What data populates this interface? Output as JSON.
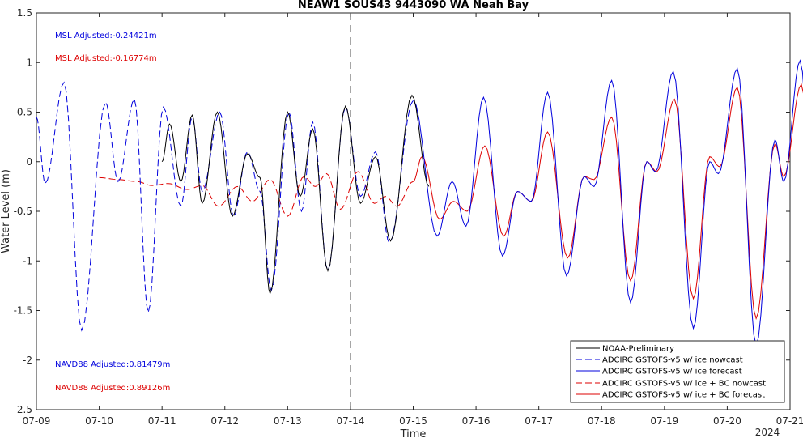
{
  "chart_data": {
    "type": "line",
    "title": "NEAW1 SOUS43 9443090 WA Neah Bay",
    "xlabel": "Time",
    "ylabel": "Water Level (m)",
    "year_label": "2024",
    "xlim": [
      "07-09",
      "07-21"
    ],
    "ylim": [
      -2.5,
      1.5
    ],
    "x_ticks": [
      "07-09",
      "07-10",
      "07-11",
      "07-12",
      "07-13",
      "07-14",
      "07-15",
      "07-16",
      "07-17",
      "07-18",
      "07-19",
      "07-20",
      "07-21"
    ],
    "y_ticks": [
      "-2.5",
      "-2",
      "-1.5",
      "-1",
      "-0.5",
      "0",
      "0.5",
      "1",
      "1.5"
    ],
    "nowcast_forecast_divider_x": "07-14",
    "annotations": [
      {
        "text": "MSL Adjusted:-0.24421m",
        "color": "#0000dd"
      },
      {
        "text": "MSL Adjusted:-0.16774m",
        "color": "#dd0000"
      },
      {
        "text": "NAVD88 Adjusted:0.81479m",
        "color": "#0000dd"
      },
      {
        "text": "NAVD88 Adjusted:0.89126m",
        "color": "#dd0000"
      }
    ],
    "legend_position": "bottom-right",
    "series": [
      {
        "name": "NOAA-Preliminary",
        "color": "#000000",
        "dash": "solid",
        "x_range": [
          "07-11",
          "07-14 06:00"
        ],
        "extrema": [
          [
            2.0,
            0.0
          ],
          [
            2.12,
            0.38
          ],
          [
            2.3,
            -0.2
          ],
          [
            2.48,
            0.47
          ],
          [
            2.64,
            -0.42
          ],
          [
            2.88,
            0.5
          ],
          [
            3.12,
            -0.55
          ],
          [
            3.36,
            0.08
          ],
          [
            3.56,
            -0.16
          ],
          [
            3.72,
            -1.33
          ],
          [
            4.0,
            0.5
          ],
          [
            4.2,
            -0.35
          ],
          [
            4.4,
            0.33
          ],
          [
            4.64,
            -1.1
          ],
          [
            4.92,
            0.56
          ],
          [
            5.16,
            -0.42
          ],
          [
            5.4,
            0.05
          ],
          [
            5.64,
            -0.8
          ],
          [
            5.98,
            0.67
          ],
          [
            6.25,
            -0.25
          ]
        ]
      },
      {
        "name": "ADCIRC GSTOFS-v5 w/ ice nowcast",
        "color": "#0000dd",
        "dash": "dashed",
        "x_range": [
          "07-09",
          "07-14"
        ],
        "extrema": [
          [
            0.0,
            0.45
          ],
          [
            0.14,
            -0.22
          ],
          [
            0.44,
            0.8
          ],
          [
            0.72,
            -1.7
          ],
          [
            1.1,
            0.6
          ],
          [
            1.3,
            -0.2
          ],
          [
            1.56,
            0.63
          ],
          [
            1.78,
            -1.52
          ],
          [
            2.02,
            0.55
          ],
          [
            2.3,
            -0.45
          ],
          [
            2.48,
            0.45
          ],
          [
            2.64,
            -0.3
          ],
          [
            2.92,
            0.5
          ],
          [
            3.14,
            -0.55
          ],
          [
            3.36,
            0.1
          ],
          [
            3.56,
            -0.3
          ],
          [
            3.74,
            -1.3
          ],
          [
            4.02,
            0.5
          ],
          [
            4.22,
            -0.5
          ],
          [
            4.4,
            0.4
          ],
          [
            4.64,
            -1.1
          ],
          [
            4.92,
            0.55
          ],
          [
            5.16,
            -0.35
          ],
          [
            5.4,
            0.1
          ],
          [
            5.62,
            -0.82
          ],
          [
            6.0,
            0.62
          ]
        ]
      },
      {
        "name": "ADCIRC GSTOFS-v5 w/ ice forecast",
        "color": "#0000dd",
        "dash": "solid",
        "x_range": [
          "07-14",
          "07-21"
        ],
        "extrema": [
          [
            6.0,
            0.62
          ],
          [
            6.38,
            -0.75
          ],
          [
            6.62,
            -0.2
          ],
          [
            6.84,
            -0.65
          ],
          [
            7.12,
            0.65
          ],
          [
            7.42,
            -0.95
          ],
          [
            7.66,
            -0.3
          ],
          [
            7.88,
            -0.4
          ],
          [
            8.14,
            0.7
          ],
          [
            8.44,
            -1.15
          ],
          [
            8.72,
            -0.15
          ],
          [
            8.88,
            -0.25
          ],
          [
            9.16,
            0.82
          ],
          [
            9.46,
            -1.42
          ],
          [
            9.72,
            0.0
          ],
          [
            9.86,
            -0.1
          ],
          [
            10.14,
            0.91
          ],
          [
            10.46,
            -1.68
          ],
          [
            10.72,
            0.0
          ],
          [
            10.86,
            -0.12
          ],
          [
            11.16,
            0.94
          ],
          [
            11.46,
            -1.85
          ],
          [
            11.76,
            0.22
          ],
          [
            11.9,
            -0.2
          ],
          [
            12.16,
            1.02
          ],
          [
            12.46,
            -1.95
          ],
          [
            12.72,
            0.3
          ],
          [
            12.86,
            -0.15
          ]
        ]
      },
      {
        "name": "ADCIRC GSTOFS-v5 w/ ice + BC nowcast",
        "color": "#dd0000",
        "dash": "dashed",
        "x_range": [
          "07-10",
          "07-14"
        ],
        "extrema": [
          [
            1.0,
            -0.16
          ],
          [
            1.3,
            -0.18
          ],
          [
            1.6,
            -0.2
          ],
          [
            1.84,
            -0.24
          ],
          [
            2.1,
            -0.22
          ],
          [
            2.4,
            -0.28
          ],
          [
            2.64,
            -0.24
          ],
          [
            2.9,
            -0.45
          ],
          [
            3.2,
            -0.25
          ],
          [
            3.44,
            -0.4
          ],
          [
            3.72,
            -0.18
          ],
          [
            4.0,
            -0.55
          ],
          [
            4.26,
            -0.15
          ],
          [
            4.44,
            -0.25
          ],
          [
            4.62,
            -0.12
          ],
          [
            4.84,
            -0.48
          ],
          [
            5.12,
            -0.1
          ],
          [
            5.38,
            -0.42
          ],
          [
            5.56,
            -0.35
          ],
          [
            5.74,
            -0.45
          ],
          [
            6.0,
            -0.2
          ]
        ]
      },
      {
        "name": "ADCIRC GSTOFS-v5 w/ ice + BC forecast",
        "color": "#dd0000",
        "dash": "solid",
        "x_range": [
          "07-14",
          "07-21"
        ],
        "extrema": [
          [
            6.0,
            -0.2
          ],
          [
            6.14,
            0.05
          ],
          [
            6.42,
            -0.58
          ],
          [
            6.64,
            -0.4
          ],
          [
            6.86,
            -0.5
          ],
          [
            7.14,
            0.16
          ],
          [
            7.44,
            -0.75
          ],
          [
            7.66,
            -0.3
          ],
          [
            7.88,
            -0.4
          ],
          [
            8.14,
            0.3
          ],
          [
            8.46,
            -0.97
          ],
          [
            8.72,
            -0.15
          ],
          [
            8.88,
            -0.18
          ],
          [
            9.16,
            0.45
          ],
          [
            9.46,
            -1.2
          ],
          [
            9.72,
            0.0
          ],
          [
            9.88,
            -0.1
          ],
          [
            10.16,
            0.63
          ],
          [
            10.46,
            -1.38
          ],
          [
            10.72,
            0.05
          ],
          [
            10.88,
            -0.05
          ],
          [
            11.16,
            0.75
          ],
          [
            11.46,
            -1.58
          ],
          [
            11.76,
            0.18
          ],
          [
            11.9,
            -0.15
          ],
          [
            12.18,
            0.78
          ],
          [
            12.46,
            -1.77
          ],
          [
            12.76,
            0.2
          ],
          [
            12.9,
            -0.1
          ]
        ]
      }
    ]
  }
}
